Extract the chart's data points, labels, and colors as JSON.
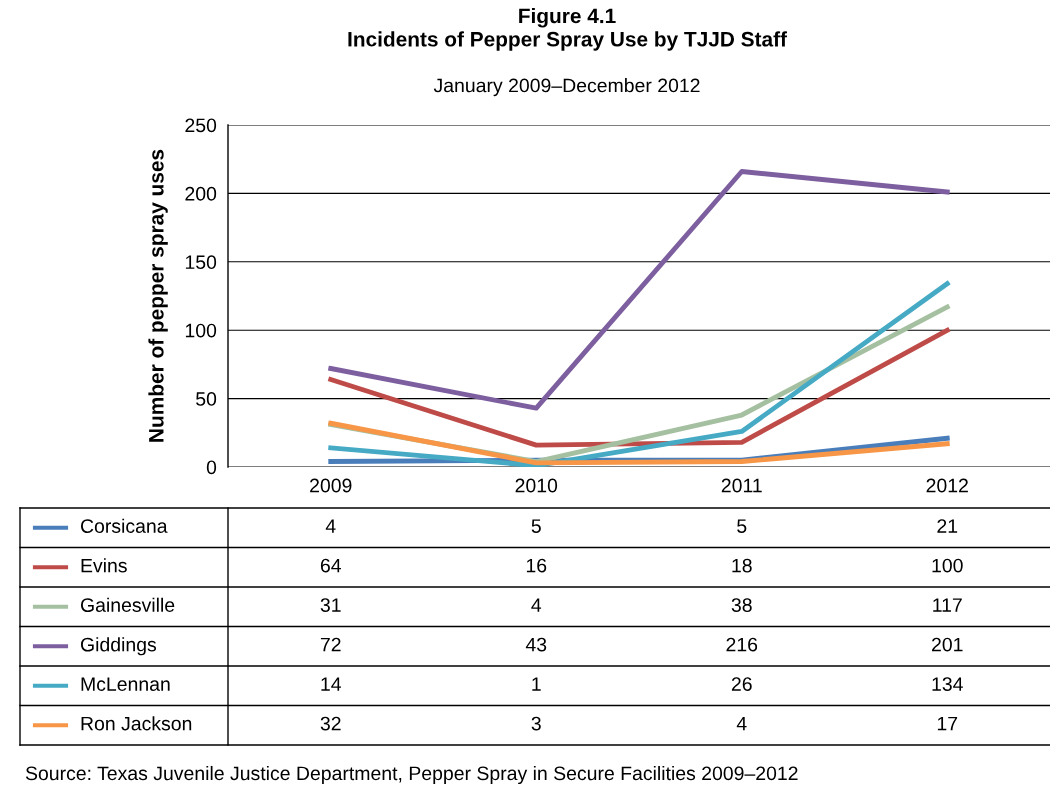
{
  "chart_data": {
    "type": "line",
    "title": "Figure 4.1\nIncidents of Pepper Spray Use by TJJD Staff",
    "subtitle": "January 2009–December 2012",
    "ylabel": "Number of pepper spray uses",
    "categories": [
      "2009",
      "2010",
      "2011",
      "2012"
    ],
    "series": [
      {
        "name": "Corsicana",
        "color": "#4a7ebb",
        "values": [
          4,
          5,
          5,
          21
        ]
      },
      {
        "name": "Evins",
        "color": "#be4b48",
        "values": [
          64,
          16,
          18,
          100
        ]
      },
      {
        "name": "Gainesville",
        "color": "#a5c0a0",
        "values": [
          31,
          4,
          38,
          117
        ]
      },
      {
        "name": "Giddings",
        "color": "#7d5fa0",
        "values": [
          72,
          43,
          216,
          201
        ]
      },
      {
        "name": "McLennan",
        "color": "#46aac5",
        "values": [
          14,
          1,
          26,
          134
        ]
      },
      {
        "name": "Ron Jackson",
        "color": "#f79646",
        "values": [
          32,
          3,
          4,
          17
        ]
      }
    ],
    "ylim": [
      0,
      250
    ],
    "yticks": [
      0,
      50,
      100,
      150,
      200,
      250
    ],
    "grid": "y",
    "legend": "bottom",
    "data_labels": true,
    "marker": "none",
    "line_style": "solid",
    "annotations": [
      "Source: Texas Juvenile Justice Department, Pepper Spray in Secure Facilities 2009–2012"
    ]
  }
}
